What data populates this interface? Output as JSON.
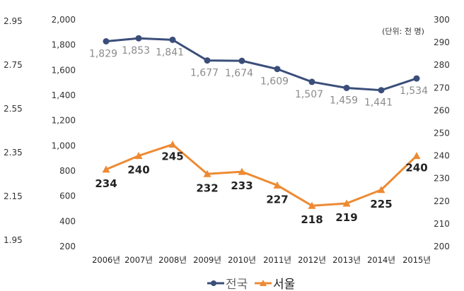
{
  "chart_data": {
    "type": "line",
    "categories": [
      "2006년",
      "2007년",
      "2008년",
      "2009년",
      "2010년",
      "2011년",
      "2012년",
      "2013년",
      "2014년",
      "2015년"
    ],
    "unit_note": "(단위: 천 명)",
    "series": [
      {
        "name": "전국",
        "axis": "left",
        "values": [
          1829,
          1853,
          1841,
          1677,
          1674,
          1609,
          1507,
          1459,
          1441,
          1534
        ],
        "labels": [
          "1,829",
          "1,853",
          "1,841",
          "1,677",
          "1,674",
          "1,609",
          "1,507",
          "1,459",
          "1,441",
          "1,534"
        ],
        "color": "#3b4e7a",
        "marker": "circle"
      },
      {
        "name": "서울",
        "axis": "right",
        "values": [
          234,
          240,
          245,
          232,
          233,
          227,
          218,
          219,
          225,
          240
        ],
        "labels": [
          "234",
          "240",
          "245",
          "232",
          "233",
          "227",
          "218",
          "219",
          "225",
          "240"
        ],
        "color": "#ed8a33",
        "marker": "triangle"
      }
    ],
    "left_axis": {
      "ticks": [
        "2,000",
        "1,800",
        "1,600",
        "1,400",
        "1,200",
        "1,000",
        "800",
        "600",
        "400",
        "200"
      ],
      "ylim": [
        200,
        2000
      ]
    },
    "right_axis": {
      "ticks": [
        "300",
        "290",
        "280",
        "270",
        "260",
        "250",
        "240",
        "230",
        "220",
        "210",
        "200"
      ],
      "ylim": [
        200,
        300
      ]
    },
    "outer_left_axis": {
      "ticks": [
        "2.95",
        "2.75",
        "2.55",
        "2.35",
        "2.15",
        "1.95"
      ]
    },
    "legend_placement": "bottom-center",
    "grid": false
  }
}
